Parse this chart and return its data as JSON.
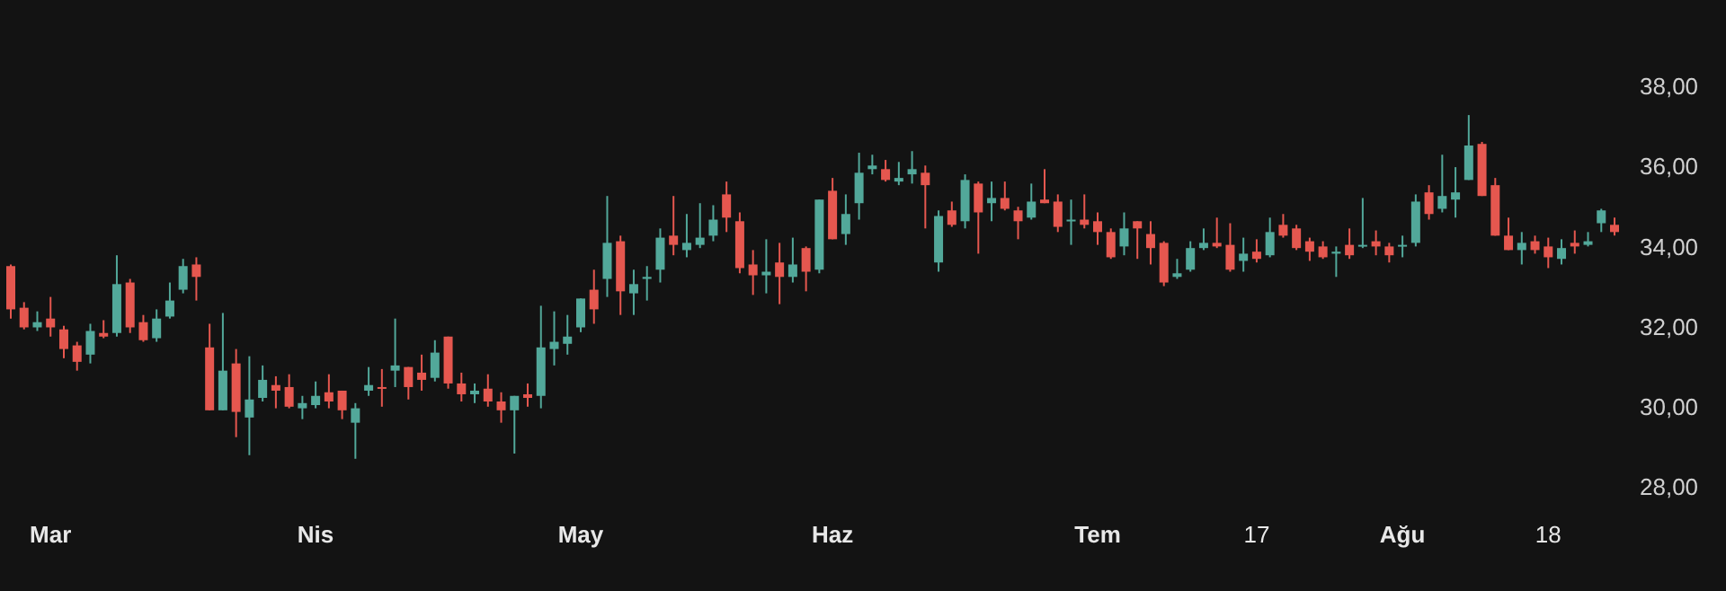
{
  "chart_data": {
    "type": "candlestick",
    "categories": [
      null,
      null,
      null,
      "Mar",
      null,
      null,
      null,
      null,
      null,
      null,
      null,
      null,
      null,
      null,
      null,
      null,
      null,
      null,
      null,
      null,
      null,
      null,
      null,
      "Nis",
      null,
      null,
      null,
      null,
      null,
      null,
      null,
      null,
      null,
      null,
      null,
      null,
      null,
      null,
      null,
      null,
      null,
      null,
      null,
      "May",
      null,
      null,
      null,
      null,
      null,
      null,
      null,
      null,
      null,
      null,
      null,
      null,
      null,
      null,
      null,
      null,
      null,
      null,
      "Haz",
      null,
      null,
      null,
      null,
      null,
      null,
      null,
      null,
      null,
      null,
      null,
      null,
      null,
      null,
      null,
      null,
      null,
      null,
      null,
      "Tem",
      null,
      null,
      null,
      null,
      null,
      null,
      null,
      null,
      null,
      null,
      null,
      "17",
      null,
      null,
      null,
      null,
      null,
      null,
      null,
      null,
      null,
      null,
      "Ağu",
      null,
      null,
      null,
      null,
      null,
      null,
      null,
      null,
      null,
      null,
      "18",
      null,
      null,
      null,
      null,
      null
    ],
    "ohlc": [
      [
        33.51,
        33.55,
        32.2,
        32.43
      ],
      [
        32.47,
        32.61,
        31.93,
        31.98
      ],
      [
        31.98,
        32.38,
        31.89,
        32.11
      ],
      [
        32.2,
        32.74,
        31.75,
        31.98
      ],
      [
        31.93,
        32.02,
        31.21,
        31.44
      ],
      [
        31.53,
        31.62,
        30.9,
        31.12
      ],
      [
        31.3,
        32.07,
        31.08,
        31.89
      ],
      [
        31.84,
        32.16,
        31.71,
        31.75
      ],
      [
        31.84,
        33.78,
        31.75,
        33.06
      ],
      [
        33.1,
        33.19,
        31.84,
        31.98
      ],
      [
        32.11,
        32.29,
        31.62,
        31.66
      ],
      [
        31.71,
        32.43,
        31.62,
        32.2
      ],
      [
        32.25,
        33.1,
        32.2,
        32.65
      ],
      [
        32.92,
        33.69,
        32.83,
        33.51
      ],
      [
        33.55,
        33.73,
        32.65,
        33.24
      ],
      [
        31.48,
        32.07,
        29.91,
        29.91
      ],
      [
        29.91,
        32.34,
        29.91,
        30.9
      ],
      [
        31.08,
        31.44,
        29.24,
        29.87
      ],
      [
        29.73,
        31.26,
        28.79,
        30.18
      ],
      [
        30.22,
        31.03,
        30.13,
        30.67
      ],
      [
        30.54,
        30.76,
        29.96,
        30.4
      ],
      [
        30.49,
        30.81,
        29.96,
        30.0
      ],
      [
        29.96,
        30.27,
        29.69,
        30.09
      ],
      [
        30.04,
        30.63,
        29.96,
        30.27
      ],
      [
        30.36,
        30.81,
        29.96,
        30.13
      ],
      [
        30.4,
        30.4,
        29.69,
        29.91
      ],
      [
        29.6,
        30.09,
        28.7,
        29.96
      ],
      [
        30.4,
        30.99,
        30.27,
        30.54
      ],
      [
        30.49,
        30.94,
        30.0,
        30.45
      ],
      [
        30.9,
        32.2,
        30.49,
        31.03
      ],
      [
        30.99,
        30.99,
        30.18,
        30.49
      ],
      [
        30.85,
        31.3,
        30.4,
        30.67
      ],
      [
        30.72,
        31.66,
        30.63,
        31.35
      ],
      [
        31.75,
        31.75,
        30.45,
        30.58
      ],
      [
        30.58,
        30.85,
        30.13,
        30.31
      ],
      [
        30.31,
        30.58,
        30.09,
        30.4
      ],
      [
        30.45,
        30.81,
        30.0,
        30.13
      ],
      [
        30.13,
        30.36,
        29.6,
        29.91
      ],
      [
        29.91,
        30.27,
        28.83,
        30.27
      ],
      [
        30.31,
        30.58,
        30.0,
        30.22
      ],
      [
        30.27,
        32.52,
        29.96,
        31.48
      ],
      [
        31.44,
        32.38,
        31.03,
        31.62
      ],
      [
        31.57,
        32.29,
        31.3,
        31.75
      ],
      [
        31.98,
        32.7,
        31.86,
        32.7
      ],
      [
        32.92,
        33.42,
        32.07,
        32.43
      ],
      [
        33.19,
        35.26,
        32.74,
        34.09
      ],
      [
        34.13,
        34.27,
        32.29,
        32.88
      ],
      [
        32.83,
        33.42,
        32.29,
        33.06
      ],
      [
        33.19,
        33.51,
        32.65,
        33.24
      ],
      [
        33.42,
        34.45,
        33.1,
        34.22
      ],
      [
        34.27,
        35.26,
        33.78,
        34.04
      ],
      [
        33.91,
        34.81,
        33.73,
        34.09
      ],
      [
        34.04,
        35.08,
        33.96,
        34.22
      ],
      [
        34.27,
        35.03,
        34.13,
        34.67
      ],
      [
        35.3,
        35.62,
        34.36,
        34.72
      ],
      [
        34.63,
        34.85,
        33.33,
        33.46
      ],
      [
        33.55,
        33.91,
        32.79,
        33.28
      ],
      [
        33.28,
        34.18,
        32.83,
        33.37
      ],
      [
        33.6,
        34.09,
        32.56,
        33.24
      ],
      [
        33.24,
        34.22,
        33.1,
        33.55
      ],
      [
        33.96,
        34.0,
        32.88,
        33.37
      ],
      [
        33.42,
        35.17,
        33.33,
        35.17
      ],
      [
        35.39,
        35.71,
        34.18,
        34.18
      ],
      [
        34.31,
        35.3,
        34.04,
        34.81
      ],
      [
        35.08,
        36.34,
        34.67,
        35.84
      ],
      [
        35.93,
        36.29,
        35.8,
        36.02
      ],
      [
        35.93,
        36.16,
        35.62,
        35.66
      ],
      [
        35.62,
        36.11,
        35.53,
        35.71
      ],
      [
        35.8,
        36.38,
        35.57,
        35.93
      ],
      [
        35.84,
        36.02,
        34.45,
        35.53
      ],
      [
        33.6,
        34.9,
        33.37,
        34.76
      ],
      [
        34.9,
        35.12,
        34.49,
        34.54
      ],
      [
        34.63,
        35.8,
        34.45,
        35.66
      ],
      [
        35.57,
        35.62,
        33.82,
        34.85
      ],
      [
        35.08,
        35.62,
        34.63,
        35.21
      ],
      [
        35.21,
        35.62,
        34.9,
        34.94
      ],
      [
        34.9,
        34.99,
        34.18,
        34.63
      ],
      [
        34.72,
        35.57,
        34.67,
        35.12
      ],
      [
        35.17,
        35.93,
        35.08,
        35.08
      ],
      [
        35.12,
        35.3,
        34.36,
        34.49
      ],
      [
        34.63,
        35.17,
        34.04,
        34.67
      ],
      [
        34.67,
        35.3,
        34.45,
        34.54
      ],
      [
        34.63,
        34.85,
        34.04,
        34.36
      ],
      [
        34.36,
        34.45,
        33.69,
        33.73
      ],
      [
        34.0,
        34.85,
        33.78,
        34.45
      ],
      [
        34.63,
        34.63,
        33.69,
        34.45
      ],
      [
        34.31,
        34.63,
        33.55,
        33.96
      ],
      [
        34.09,
        34.13,
        33.01,
        33.1
      ],
      [
        33.24,
        33.69,
        33.19,
        33.33
      ],
      [
        33.42,
        34.13,
        33.37,
        33.96
      ],
      [
        33.96,
        34.45,
        33.91,
        34.09
      ],
      [
        34.09,
        34.72,
        33.96,
        34.0
      ],
      [
        34.04,
        34.58,
        33.37,
        33.42
      ],
      [
        33.64,
        34.22,
        33.37,
        33.82
      ],
      [
        33.87,
        34.18,
        33.6,
        33.69
      ],
      [
        33.78,
        34.72,
        33.73,
        34.36
      ],
      [
        34.54,
        34.81,
        34.22,
        34.27
      ],
      [
        34.45,
        34.54,
        33.91,
        33.96
      ],
      [
        34.13,
        34.22,
        33.64,
        33.87
      ],
      [
        34.0,
        34.13,
        33.69,
        33.73
      ],
      [
        33.82,
        34.0,
        33.24,
        33.87
      ],
      [
        34.04,
        34.45,
        33.69,
        33.78
      ],
      [
        34.0,
        35.21,
        33.96,
        34.04
      ],
      [
        34.13,
        34.4,
        33.78,
        34.0
      ],
      [
        34.0,
        34.09,
        33.6,
        33.78
      ],
      [
        34.0,
        34.27,
        33.73,
        34.04
      ],
      [
        34.09,
        35.3,
        34.0,
        35.12
      ],
      [
        35.35,
        35.53,
        34.67,
        34.81
      ],
      [
        34.94,
        36.29,
        34.85,
        35.26
      ],
      [
        35.17,
        35.98,
        34.72,
        35.35
      ],
      [
        35.66,
        37.28,
        35.66,
        36.52
      ],
      [
        36.56,
        36.61,
        35.26,
        35.26
      ],
      [
        35.53,
        35.71,
        34.27,
        34.27
      ],
      [
        34.27,
        34.72,
        33.91,
        33.91
      ],
      [
        33.91,
        34.36,
        33.55,
        34.09
      ],
      [
        34.13,
        34.27,
        33.82,
        33.91
      ],
      [
        34.0,
        34.22,
        33.46,
        33.73
      ],
      [
        33.69,
        34.18,
        33.55,
        33.96
      ],
      [
        34.09,
        34.4,
        33.82,
        34.0
      ],
      [
        34.04,
        34.36,
        34.0,
        34.13
      ],
      [
        34.58,
        34.94,
        34.36,
        34.9
      ],
      [
        34.54,
        34.72,
        34.27,
        34.36
      ]
    ],
    "colors": [
      "#e5574f",
      "#e5574f",
      "#52a89a",
      "#e5574f",
      "#e5574f",
      "#e5574f",
      "#52a89a",
      "#e5574f",
      "#52a89a",
      "#e5574f",
      "#e5574f",
      "#52a89a",
      "#52a89a",
      "#52a89a",
      "#e5574f",
      "#e5574f",
      "#52a89a",
      "#e5574f",
      "#52a89a",
      "#52a89a",
      "#e5574f",
      "#e5574f",
      "#52a89a",
      "#52a89a",
      "#e5574f",
      "#e5574f",
      "#52a89a",
      "#52a89a",
      "#e5574f",
      "#52a89a",
      "#e5574f",
      "#e5574f",
      "#52a89a",
      "#e5574f",
      "#e5574f",
      "#52a89a",
      "#e5574f",
      "#e5574f",
      "#52a89a",
      "#e5574f",
      "#52a89a",
      "#52a89a",
      "#52a89a",
      "#52a89a",
      "#e5574f",
      "#52a89a",
      "#e5574f",
      "#52a89a",
      "#52a89a",
      "#52a89a",
      "#e5574f",
      "#52a89a",
      "#52a89a",
      "#52a89a",
      "#e5574f",
      "#e5574f",
      "#e5574f",
      "#52a89a",
      "#e5574f",
      "#52a89a",
      "#e5574f",
      "#52a89a",
      "#e5574f",
      "#52a89a",
      "#52a89a",
      "#52a89a",
      "#e5574f",
      "#52a89a",
      "#52a89a",
      "#e5574f",
      "#52a89a",
      "#e5574f",
      "#52a89a",
      "#e5574f",
      "#52a89a",
      "#e5574f",
      "#e5574f",
      "#52a89a",
      "#e5574f",
      "#e5574f",
      "#52a89a",
      "#e5574f",
      "#e5574f",
      "#e5574f",
      "#52a89a",
      "#e5574f",
      "#e5574f",
      "#e5574f",
      "#52a89a",
      "#52a89a",
      "#52a89a",
      "#e5574f",
      "#e5574f",
      "#52a89a",
      "#e5574f",
      "#52a89a",
      "#e5574f",
      "#e5574f",
      "#e5574f",
      "#e5574f",
      "#52a89a",
      "#e5574f",
      "#52a89a",
      "#e5574f",
      "#e5574f",
      "#52a89a",
      "#52a89a",
      "#e5574f",
      "#52a89a",
      "#52a89a",
      "#52a89a",
      "#e5574f",
      "#e5574f",
      "#e5574f",
      "#52a89a",
      "#e5574f",
      "#e5574f",
      "#52a89a",
      "#e5574f",
      "#52a89a",
      "#52a89a",
      "#e5574f"
    ],
    "ylim": [
      28,
      38
    ],
    "yticks": [
      {
        "value": 28,
        "label": "28,00"
      },
      {
        "value": 30,
        "label": "30,00"
      },
      {
        "value": 32,
        "label": "32,00"
      },
      {
        "value": 34,
        "label": "34,00"
      },
      {
        "value": 36,
        "label": "36,00"
      },
      {
        "value": 38,
        "label": "38,00"
      }
    ],
    "grid": false
  }
}
